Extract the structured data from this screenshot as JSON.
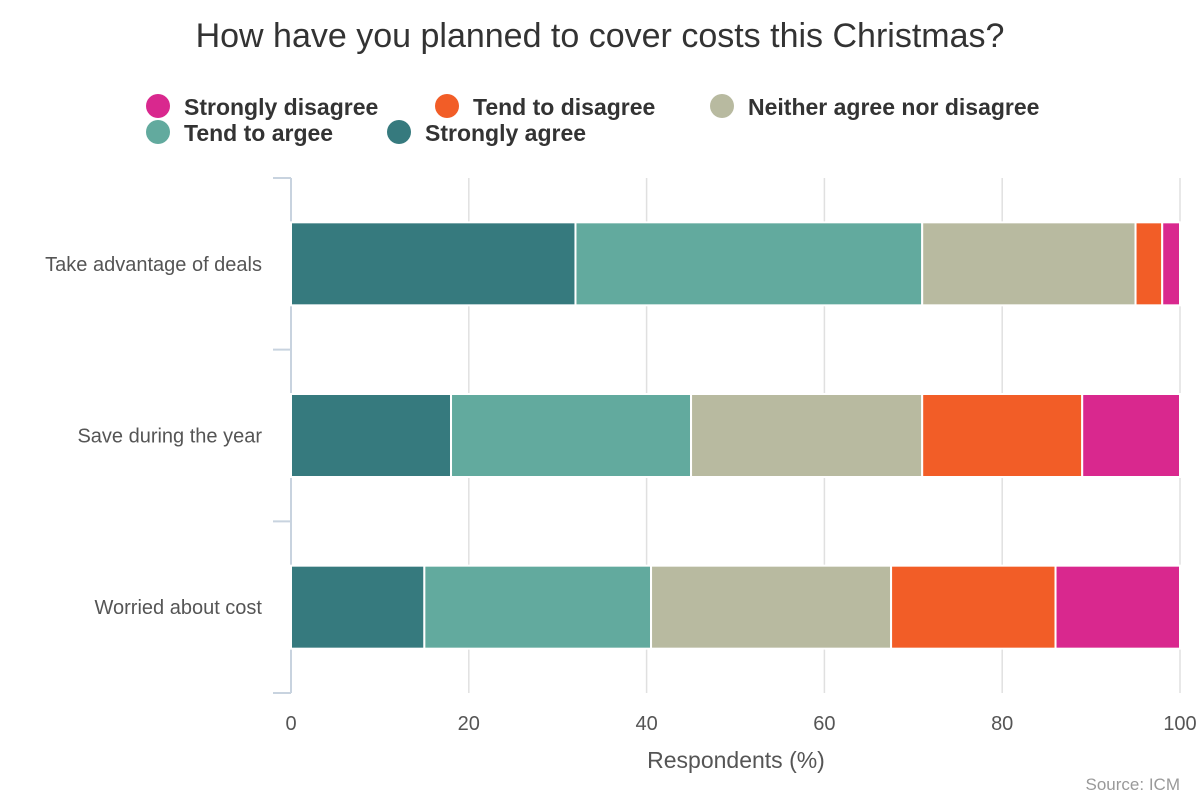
{
  "chart_data": {
    "type": "bar",
    "orientation": "horizontal",
    "stacked": true,
    "title": "How have you planned to cover costs this Christmas?",
    "xlabel": "Respondents (%)",
    "ylabel": "",
    "xlim": [
      0,
      100
    ],
    "x_ticks": [
      0,
      20,
      40,
      60,
      80,
      100
    ],
    "grid": true,
    "legend_position": "top",
    "categories": [
      "Take advantage of deals",
      "Save during the year",
      "Worried about cost"
    ],
    "series": [
      {
        "name": "Strongly agree",
        "color": "#367a7e",
        "values": [
          32,
          18,
          15
        ]
      },
      {
        "name": "Tend to argee",
        "color": "#62aa9e",
        "values": [
          39,
          27,
          25.5
        ]
      },
      {
        "name": "Neither agree nor disagree",
        "color": "#b8baa0",
        "values": [
          24,
          26,
          27
        ]
      },
      {
        "name": "Tend to disagree",
        "color": "#f25d27",
        "values": [
          3,
          18,
          18.5
        ]
      },
      {
        "name": "Strongly disagree",
        "color": "#d9288e",
        "values": [
          2,
          11,
          14
        ]
      }
    ],
    "legend_order": [
      "Strongly disagree",
      "Tend to disagree",
      "Neither agree nor disagree",
      "Tend to argee",
      "Strongly agree"
    ],
    "source": "Source: ICM"
  }
}
